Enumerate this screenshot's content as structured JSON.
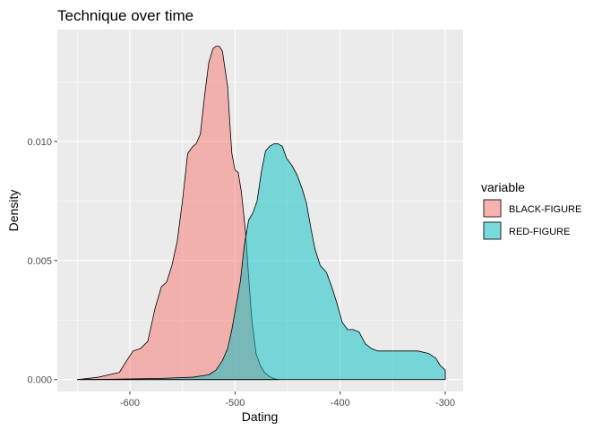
{
  "chart_data": {
    "type": "area",
    "title": "Technique over time",
    "xlabel": "Dating",
    "ylabel": "Density",
    "xlim": [
      -669,
      -283
    ],
    "ylim": [
      -0.0005,
      0.0147
    ],
    "x_ticks": [
      -600,
      -500,
      -400,
      -300
    ],
    "x_tick_labels": [
      "-600",
      "-500",
      "-400",
      "-300"
    ],
    "y_ticks": [
      0.0,
      0.005,
      0.01
    ],
    "y_tick_labels": [
      "0.000",
      "0.005",
      "0.010"
    ],
    "grid": true,
    "legend_title": "variable",
    "legend_position": "right",
    "series": [
      {
        "name": "BLACK-FIGURE",
        "color": "#F8766D",
        "opacity": 0.5,
        "x": [
          -650,
          -630,
          -620,
          -610,
          -603,
          -597,
          -590,
          -583,
          -576,
          -570,
          -565,
          -560,
          -555,
          -550,
          -545,
          -540,
          -537,
          -533,
          -529,
          -525,
          -521,
          -518,
          -515,
          -512,
          -510,
          -507,
          -505,
          -503,
          -500,
          -497,
          -494,
          -490,
          -487,
          -484,
          -480,
          -476,
          -472,
          -468,
          -465,
          -462,
          -458
        ],
        "values": [
          0.0,
          0.0001,
          0.0002,
          0.0003,
          0.0008,
          0.0012,
          0.0013,
          0.0016,
          0.003,
          0.0039,
          0.0041,
          0.0048,
          0.0058,
          0.0075,
          0.0095,
          0.0098,
          0.0099,
          0.0103,
          0.0119,
          0.0133,
          0.0139,
          0.014,
          0.014,
          0.0138,
          0.0132,
          0.0123,
          0.0108,
          0.0095,
          0.0088,
          0.0087,
          0.0079,
          0.0062,
          0.0043,
          0.0025,
          0.0011,
          0.0006,
          0.0003,
          0.00015,
          8e-05,
          3e-05,
          0.0
        ]
      },
      {
        "name": "RED-FIGURE",
        "color": "#00BFC4",
        "opacity": 0.5,
        "x": [
          -650,
          -610,
          -570,
          -540,
          -525,
          -518,
          -512,
          -507,
          -503,
          -499,
          -495,
          -491,
          -487,
          -483,
          -479,
          -475,
          -471,
          -467,
          -463,
          -459,
          -455,
          -451,
          -446,
          -441,
          -436,
          -432,
          -428,
          -424,
          -419,
          -413,
          -408,
          -403,
          -398,
          -393,
          -388,
          -382,
          -376,
          -370,
          -364,
          -358,
          -352,
          -345,
          -336,
          -326,
          -316,
          -309,
          -305,
          -300
        ],
        "values": [
          0.0,
          2e-05,
          5e-05,
          0.0001,
          0.0002,
          0.0004,
          0.0008,
          0.0013,
          0.0021,
          0.0031,
          0.0041,
          0.0057,
          0.0067,
          0.007,
          0.0075,
          0.0087,
          0.0096,
          0.0098,
          0.0099,
          0.0099,
          0.0098,
          0.0093,
          0.009,
          0.0086,
          0.008,
          0.0074,
          0.0064,
          0.0055,
          0.0048,
          0.0045,
          0.0039,
          0.0032,
          0.0024,
          0.0021,
          0.0021,
          0.002,
          0.0015,
          0.0013,
          0.0012,
          0.0012,
          0.0012,
          0.0012,
          0.0012,
          0.0012,
          0.0011,
          0.0009,
          0.0006,
          0.0004
        ]
      }
    ]
  }
}
